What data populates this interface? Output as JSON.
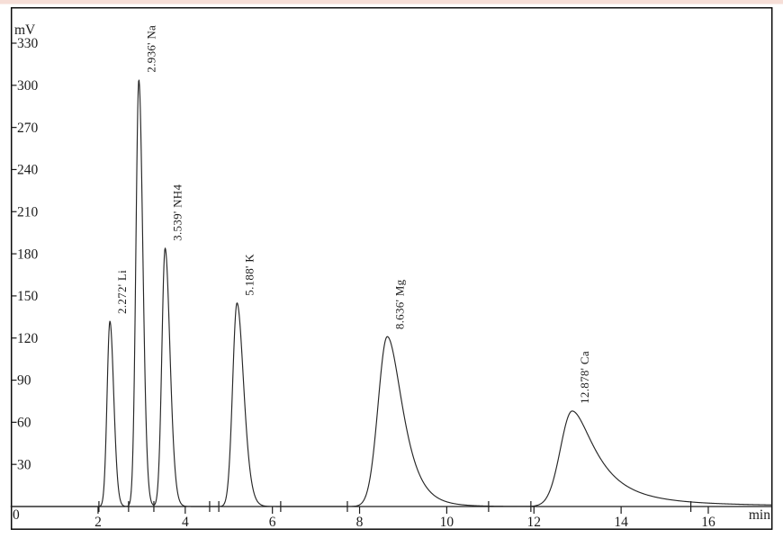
{
  "chart_data": {
    "type": "line",
    "description": "Ion chromatogram, detector signal (mV) versus retention time (min)",
    "y_axis": {
      "unit": "mV",
      "ticks": [
        30,
        60,
        90,
        120,
        150,
        180,
        210,
        240,
        270,
        300,
        330
      ],
      "range": [
        0,
        356
      ],
      "grid": false
    },
    "x_axis": {
      "unit": "min",
      "ticks": [
        2,
        4,
        6,
        8,
        10,
        12,
        14,
        16
      ],
      "origin_label": "0",
      "range": [
        0,
        17.45
      ],
      "grid": false
    },
    "baseline_mV": 0,
    "peaks": [
      {
        "analyte": "Li",
        "label": "2.272' Li",
        "retention_min": 2.272,
        "height_mV": 132,
        "sigma_left_min": 0.065,
        "sigma_right_min": 0.085,
        "tailing": 0.35
      },
      {
        "analyte": "Na",
        "label": "2.936' Na",
        "retention_min": 2.936,
        "height_mV": 304,
        "sigma_left_min": 0.068,
        "sigma_right_min": 0.088,
        "tailing": 0.3
      },
      {
        "analyte": "NH4",
        "label": "3.539' NH4",
        "retention_min": 3.539,
        "height_mV": 184,
        "sigma_left_min": 0.075,
        "sigma_right_min": 0.105,
        "tailing": 0.45
      },
      {
        "analyte": "K",
        "label": "5.188' K",
        "retention_min": 5.188,
        "height_mV": 145,
        "sigma_left_min": 0.1,
        "sigma_right_min": 0.14,
        "tailing": 0.5
      },
      {
        "analyte": "Mg",
        "label": "8.636' Mg",
        "retention_min": 8.636,
        "height_mV": 121,
        "sigma_left_min": 0.21,
        "sigma_right_min": 0.28,
        "tailing": 0.6
      },
      {
        "analyte": "Ca",
        "label": "12.878' Ca",
        "retention_min": 12.878,
        "height_mV": 68,
        "sigma_left_min": 0.27,
        "sigma_right_min": 0.38,
        "tailing": 0.7
      }
    ],
    "integration_marks_min": [
      2.02,
      2.7,
      3.28,
      4.56,
      4.77,
      6.19,
      7.72,
      10.96,
      11.93,
      15.6
    ],
    "legend": null,
    "title": ""
  },
  "colors": {
    "trace": "#262626",
    "frame": "#0a0a0a",
    "axis": "#1b1b1b",
    "background": "#ffffff",
    "top_strip": "#f6ded7"
  }
}
